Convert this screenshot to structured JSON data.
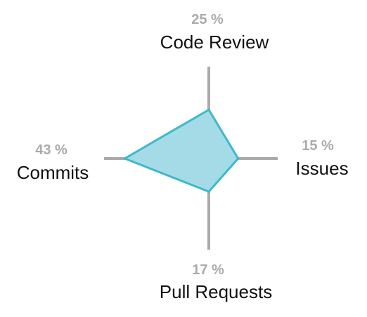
{
  "chart_data": {
    "type": "radar",
    "axes": [
      "Code Review",
      "Issues",
      "Pull Requests",
      "Commits"
    ],
    "values": [
      25,
      15,
      17,
      43
    ],
    "value_labels": [
      "25 %",
      "15 %",
      "17 %",
      "43 %"
    ],
    "unit": "%",
    "max": 43,
    "grid": false,
    "colors": {
      "fill": "#a5dbe6",
      "stroke": "#3eb8cc",
      "axis": "#aaaaaa",
      "value_label": "#ababab",
      "label": "#111111"
    }
  }
}
